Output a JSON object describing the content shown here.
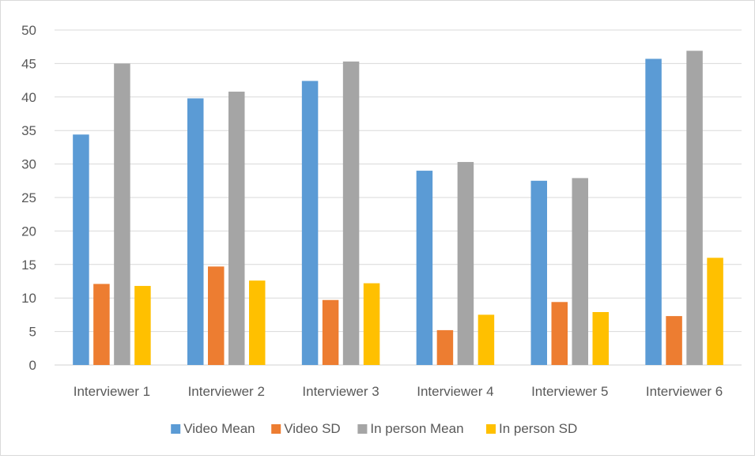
{
  "chart_data": {
    "type": "bar",
    "title": "",
    "xlabel": "",
    "ylabel": "",
    "ylim": [
      0,
      50
    ],
    "yticks": [
      0,
      5,
      10,
      15,
      20,
      25,
      30,
      35,
      40,
      45,
      50
    ],
    "grid": true,
    "legend_position": "bottom",
    "categories": [
      "Interviewer 1",
      "Interviewer 2",
      "Interviewer 3",
      "Interviewer 4",
      "Interviewer 5",
      "Interviewer 6"
    ],
    "series": [
      {
        "name": "Video Mean",
        "color": "#5b9bd5",
        "values": [
          34.4,
          39.8,
          42.4,
          29.0,
          27.5,
          45.7
        ]
      },
      {
        "name": "Video SD",
        "color": "#ed7d31",
        "values": [
          12.1,
          14.7,
          9.7,
          5.2,
          9.4,
          7.3
        ]
      },
      {
        "name": "In person Mean",
        "color": "#a5a5a5",
        "values": [
          45.0,
          40.8,
          45.3,
          30.3,
          27.9,
          46.9
        ]
      },
      {
        "name": "In person SD",
        "color": "#ffc000",
        "values": [
          11.8,
          12.6,
          12.2,
          7.5,
          7.9,
          16.0
        ]
      }
    ]
  }
}
